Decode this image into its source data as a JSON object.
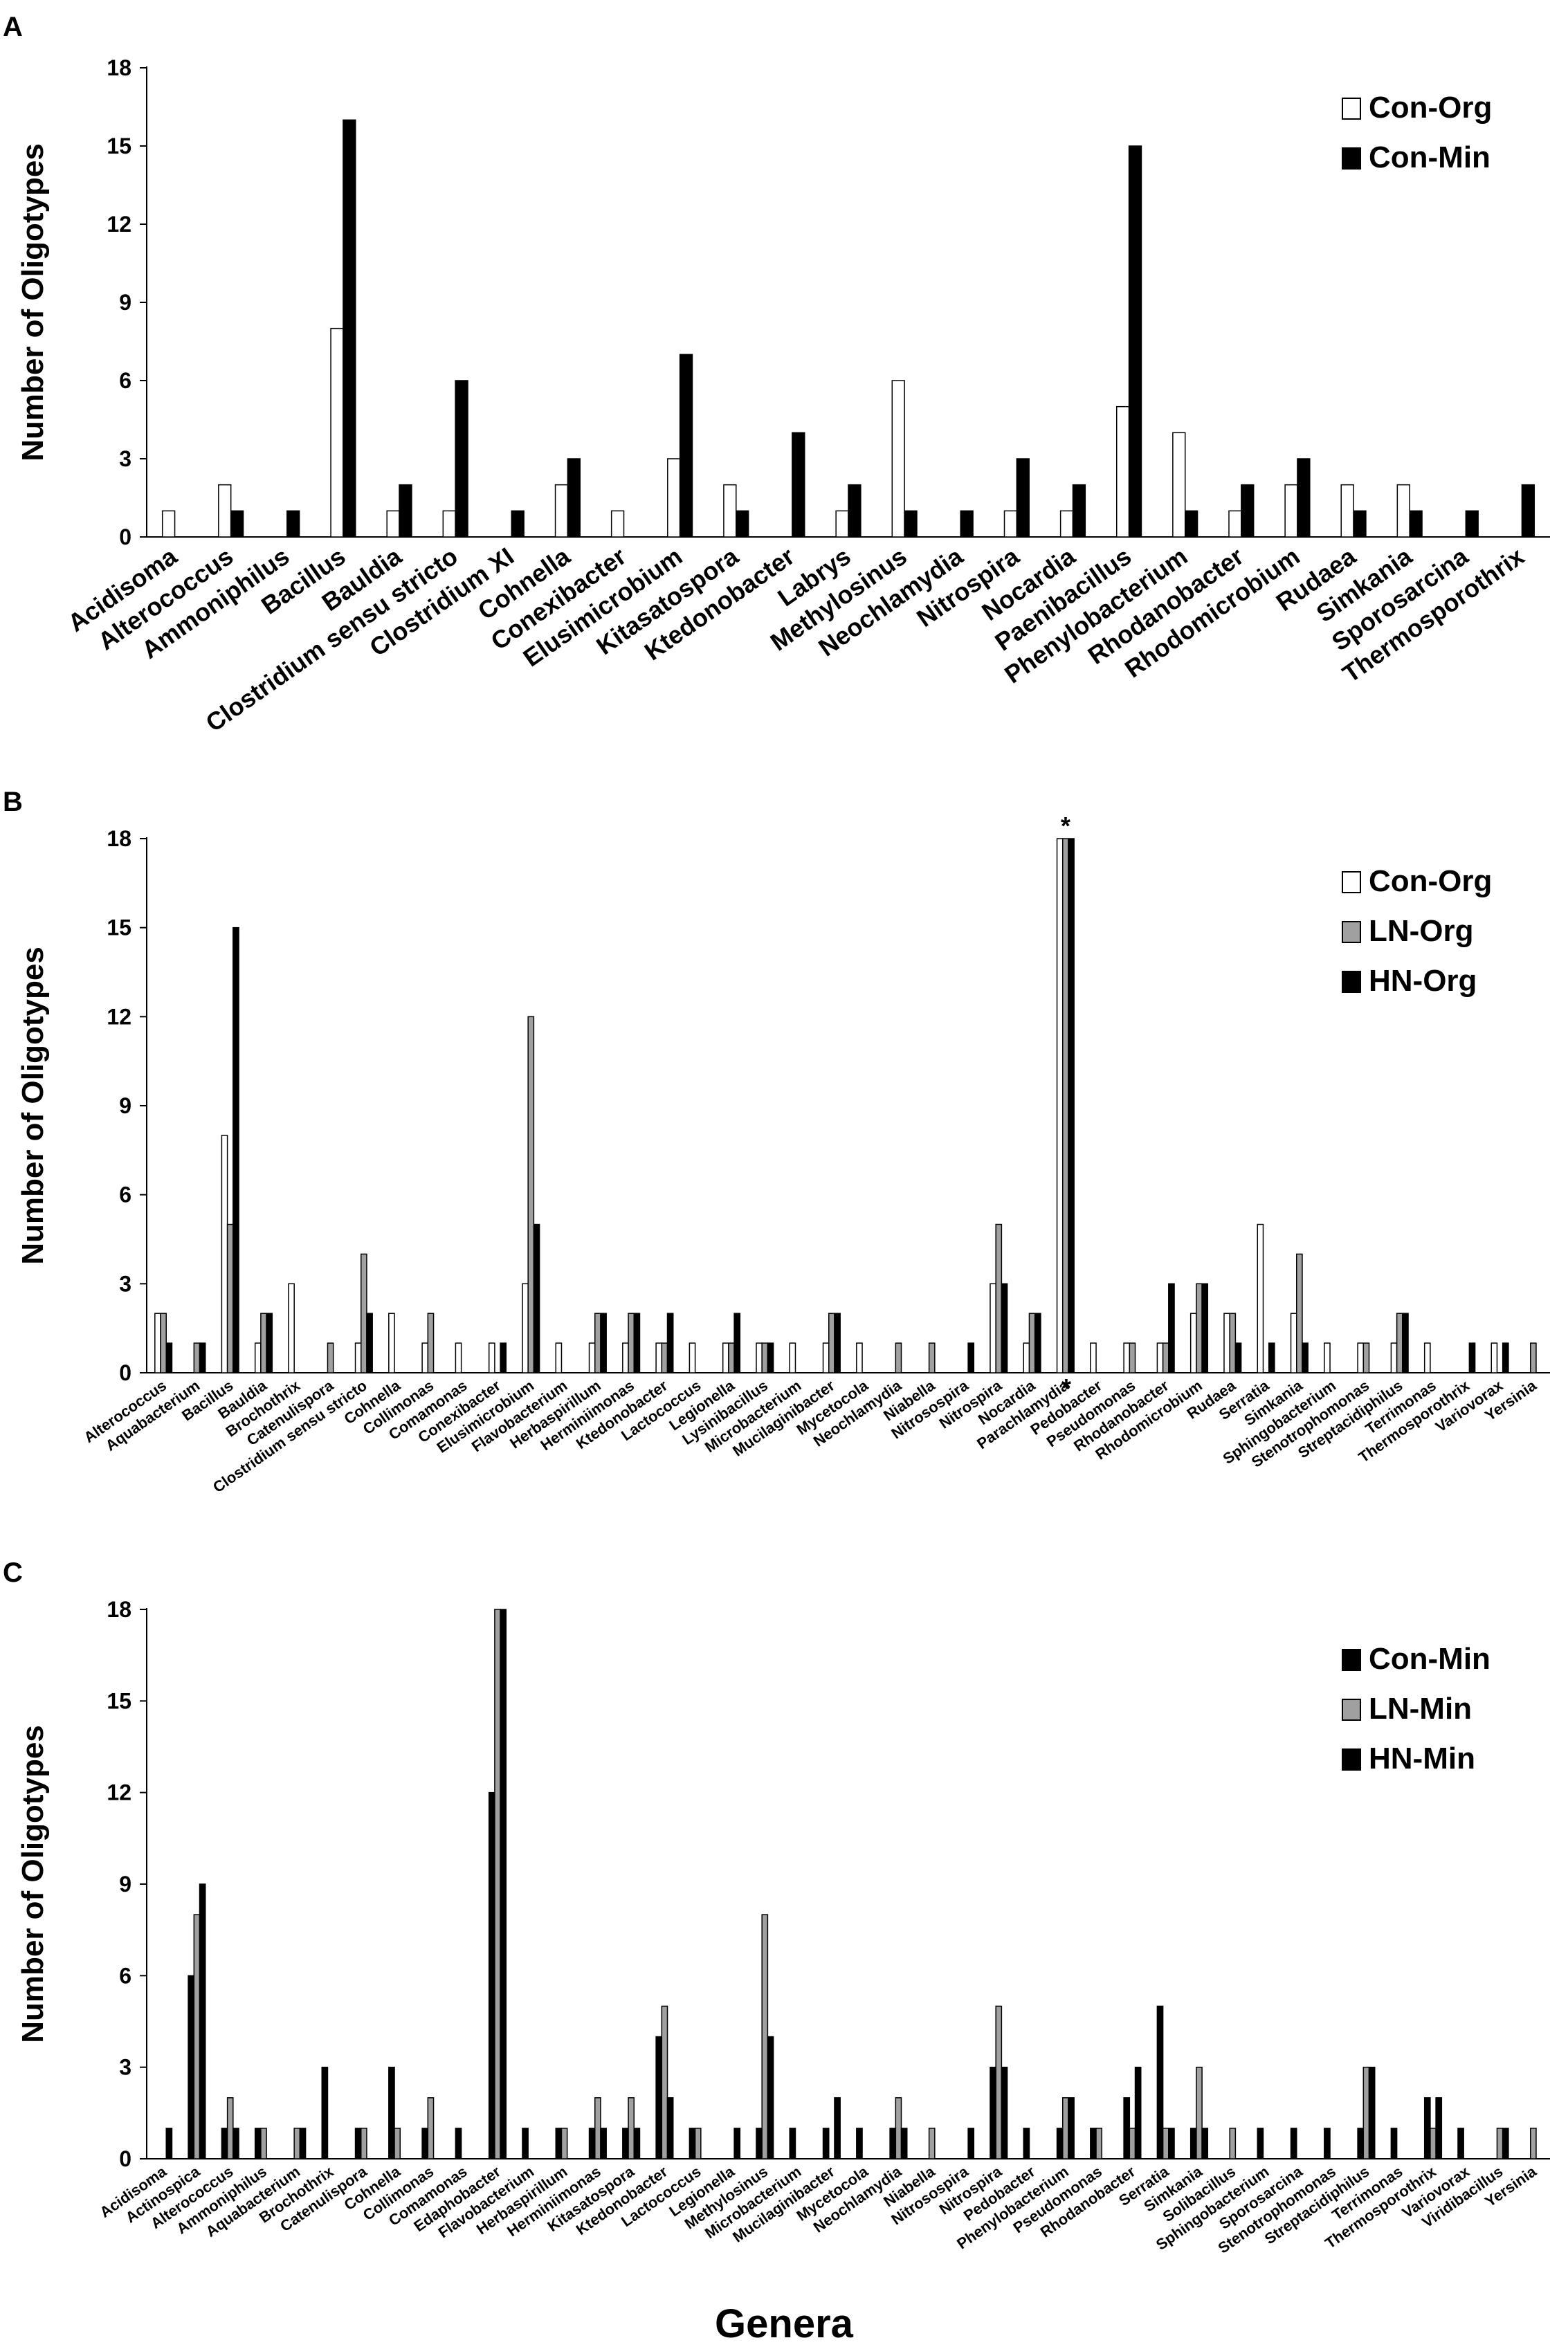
{
  "colors": {
    "Con-Org": "#ffffff",
    "Con-Min": "#000000",
    "LN-Org": "#a0a0a0",
    "HN-Org": "#000000",
    "LN-Min": "#a0a0a0",
    "HN-Min": "#000000"
  },
  "xlabel": "Genera",
  "chart_data": [
    {
      "panel": "A",
      "type": "bar",
      "ylabel": "Number of Oligotypes",
      "ylim": [
        0,
        18
      ],
      "yticks": [
        0,
        3,
        6,
        9,
        12,
        15,
        18
      ],
      "legend": "top-right",
      "categories": [
        "Acidisoma",
        "Alterococcus",
        "Ammoniphilus",
        "Bacillus",
        "Bauldia",
        "Clostridium sensu stricto",
        "Clostridium XI",
        "Cohnella",
        "Conexibacter",
        "Elusimicrobium",
        "Kitasatospora",
        "Ktedonobacter",
        "Labrys",
        "Methylosinus",
        "Neochlamydia",
        "Nitrospira",
        "Nocardia",
        "Paenibacillus",
        "Phenylobacterium",
        "Rhodanobacter",
        "Rhodomicrobium",
        "Rudaea",
        "Simkania",
        "Sporosarcina",
        "Thermosporothrix"
      ],
      "series": [
        {
          "name": "Con-Org",
          "values": [
            1,
            2,
            0,
            8,
            1,
            1,
            0,
            2,
            1,
            3,
            2,
            0,
            1,
            6,
            0,
            1,
            1,
            5,
            4,
            1,
            2,
            2,
            2,
            0,
            0
          ]
        },
        {
          "name": "Con-Min",
          "values": [
            0,
            1,
            1,
            16,
            2,
            6,
            1,
            3,
            0,
            7,
            1,
            4,
            2,
            1,
            1,
            3,
            2,
            15,
            1,
            2,
            3,
            1,
            1,
            1,
            2
          ]
        }
      ]
    },
    {
      "panel": "B",
      "type": "bar",
      "ylabel": "Number of Oligotypes",
      "ylim": [
        0,
        18
      ],
      "yticks": [
        0,
        3,
        6,
        9,
        12,
        15,
        18
      ],
      "legend": "top-right",
      "annotations": [
        {
          "category": "Parachlamydia",
          "text": "*"
        }
      ],
      "categories": [
        "Alterococcus",
        "Aquabacterium",
        "Bacillus",
        "Bauldia",
        "Brochothrix",
        "Catenulispora",
        "Clostridium sensu stricto",
        "Cohnella",
        "Collimonas",
        "Comamonas",
        "Conexibacter",
        "Elusimicrobium",
        "Flavobacterium",
        "Herbaspirillum",
        "Herminiimonas",
        "Ktedonobacter",
        "Lactococcus",
        "Legionella",
        "Lysinibacillus",
        "Microbacterium",
        "Mucilaginibacter",
        "Mycetocola",
        "Neochlamydia",
        "Niabella",
        "Nitrosospira",
        "Nitrospira",
        "Nocardia",
        "Parachlamydia",
        "Pedobacter",
        "Pseudomonas",
        "Rhodanobacter",
        "Rhodomicrobium",
        "Rudaea",
        "Serratia",
        "Simkania",
        "Sphingobacterium",
        "Stenotrophomonas",
        "Streptacidiphilus",
        "Terrimonas",
        "Thermosporothrix",
        "Variovorax",
        "Yersinia"
      ],
      "series": [
        {
          "name": "Con-Org",
          "values": [
            2,
            0,
            8,
            1,
            3,
            0,
            1,
            2,
            1,
            1,
            1,
            3,
            1,
            1,
            1,
            1,
            1,
            1,
            1,
            1,
            1,
            1,
            0,
            0,
            0,
            3,
            1,
            18,
            1,
            1,
            1,
            2,
            2,
            5,
            2,
            1,
            1,
            1,
            1,
            0,
            1,
            0
          ]
        },
        {
          "name": "LN-Org",
          "values": [
            2,
            1,
            5,
            2,
            0,
            1,
            4,
            0,
            2,
            0,
            0,
            12,
            0,
            2,
            2,
            1,
            0,
            1,
            1,
            0,
            2,
            0,
            1,
            1,
            0,
            5,
            2,
            18,
            0,
            1,
            1,
            3,
            2,
            0,
            4,
            0,
            1,
            2,
            0,
            0,
            0,
            1
          ]
        },
        {
          "name": "HN-Org",
          "values": [
            1,
            1,
            15,
            2,
            0,
            0,
            2,
            0,
            0,
            0,
            1,
            5,
            0,
            2,
            2,
            2,
            0,
            2,
            1,
            0,
            2,
            0,
            0,
            0,
            1,
            3,
            2,
            18,
            0,
            0,
            3,
            3,
            1,
            1,
            1,
            0,
            0,
            2,
            0,
            1,
            1,
            0
          ]
        }
      ]
    },
    {
      "panel": "C",
      "type": "bar",
      "ylabel": "Number of Oligotypes",
      "ylim": [
        0,
        18
      ],
      "yticks": [
        0,
        3,
        6,
        9,
        12,
        15,
        18
      ],
      "legend": "top-right",
      "categories": [
        "Acidisoma",
        "Actinospica",
        "Alterococcus",
        "Ammoniphilus",
        "Aquabacterium",
        "Brochothrix",
        "Catenulispora",
        "Cohnella",
        "Collimonas",
        "Comamonas",
        "Edaphobacter",
        "Flavobacterium",
        "Herbaspirillum",
        "Herminiimonas",
        "Kitasatospora",
        "Ktedonobacter",
        "Lactococcus",
        "Legionella",
        "Methylosinus",
        "Microbacterium",
        "Mucilaginibacter",
        "Mycetocola",
        "Neochlamydia",
        "Niabella",
        "Nitrosospira",
        "Nitrospira",
        "Pedobacter",
        "Phenylobacterium",
        "Pseudomonas",
        "Rhodanobacter",
        "Serratia",
        "Simkania",
        "Solibacillus",
        "Sphingobacterium",
        "Sporosarcina",
        "Stenotrophomonas",
        "Streptacidiphilus",
        "Terrimonas",
        "Thermosporothrix",
        "Variovorax",
        "Viridibacillus",
        "Yersinia"
      ],
      "series": [
        {
          "name": "Con-Min",
          "values": [
            0,
            6,
            1,
            1,
            0,
            3,
            1,
            3,
            1,
            1,
            12,
            1,
            1,
            1,
            1,
            4,
            1,
            0,
            1,
            1,
            1,
            1,
            1,
            0,
            0,
            3,
            1,
            1,
            1,
            2,
            5,
            1,
            0,
            1,
            1,
            1,
            1,
            1,
            2,
            1,
            0,
            0
          ]
        },
        {
          "name": "LN-Min",
          "values": [
            0,
            8,
            2,
            1,
            1,
            0,
            1,
            1,
            2,
            0,
            18,
            0,
            1,
            2,
            2,
            5,
            1,
            0,
            8,
            0,
            0,
            0,
            2,
            1,
            0,
            5,
            0,
            2,
            1,
            1,
            1,
            3,
            1,
            0,
            0,
            0,
            3,
            0,
            1,
            0,
            1,
            1
          ]
        },
        {
          "name": "HN-Min",
          "values": [
            1,
            9,
            1,
            0,
            1,
            0,
            0,
            0,
            0,
            0,
            18,
            0,
            0,
            1,
            1,
            2,
            0,
            1,
            4,
            0,
            2,
            0,
            1,
            0,
            1,
            3,
            0,
            2,
            0,
            3,
            1,
            1,
            0,
            0,
            0,
            0,
            3,
            0,
            2,
            0,
            1,
            0
          ]
        }
      ]
    }
  ]
}
